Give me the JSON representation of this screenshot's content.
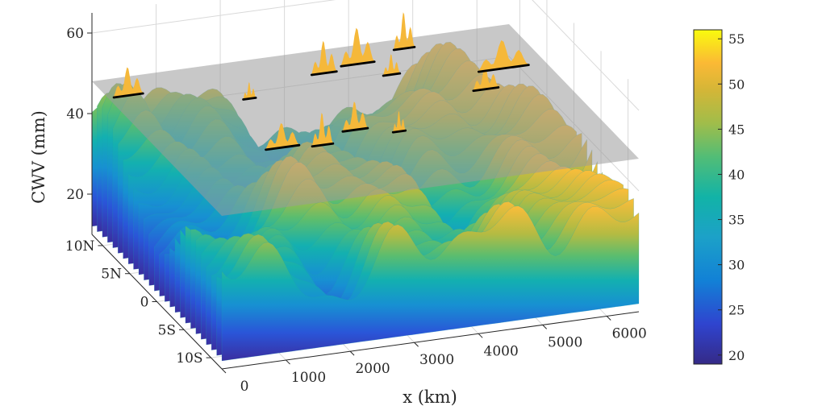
{
  "chart_data": {
    "type": "surface",
    "title": "",
    "xlabel": "x (km)",
    "ylabel": "",
    "zlabel": "CWV (mm)",
    "x_ticks": [
      "0",
      "1000",
      "2000",
      "3000",
      "4000",
      "5000",
      "6000"
    ],
    "y_ticks": [
      "10N",
      "5N",
      "0",
      "5S",
      "10S"
    ],
    "z_ticks": [
      "20",
      "40",
      "60"
    ],
    "xlim": [
      0,
      6500
    ],
    "ylim_deg": [
      -12,
      12
    ],
    "zlim": [
      10,
      65
    ],
    "threshold_plane": 48,
    "contour_level": 48,
    "colormap": "parula",
    "colorbar": {
      "ticks": [
        "20",
        "25",
        "30",
        "35",
        "40",
        "45",
        "50",
        "55"
      ],
      "range": [
        19,
        56
      ],
      "position": "right"
    },
    "colors": {
      "plane": "#9a9a9a",
      "contour": "#000000",
      "grid": "#d9d9d9"
    }
  }
}
